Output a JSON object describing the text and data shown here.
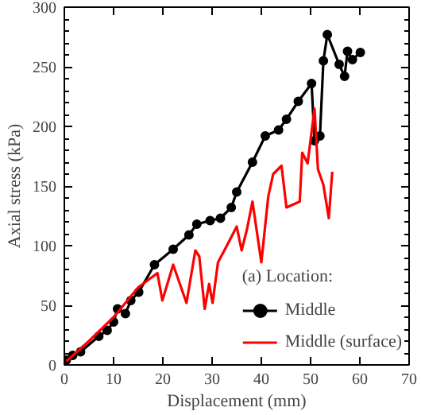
{
  "chart_data": {
    "type": "line",
    "xlabel": "Displacement (mm)",
    "ylabel": "Axial stress (kPa)",
    "legend_title": "(a) Location:",
    "legend": "bottom right",
    "grid": false,
    "xlim": [
      0,
      70
    ],
    "xticks": [
      0,
      10,
      20,
      30,
      40,
      50,
      60,
      70
    ],
    "ylim": [
      0,
      300
    ],
    "yticks": [
      0,
      50,
      100,
      150,
      200,
      250,
      300
    ],
    "series": [
      {
        "name": "Middle",
        "color": "#000000",
        "marker": "circle",
        "x": [
          0.4,
          1.7,
          3.3,
          7,
          8.7,
          10,
          10.8,
          12.4,
          13.5,
          15.1,
          18.3,
          22.1,
          25.3,
          26.9,
          29.6,
          31.7,
          33.9,
          35,
          38.2,
          40.8,
          43.5,
          45.1,
          47.5,
          50.2,
          50.8,
          51.9,
          52.6,
          53.4,
          55.8,
          56.9,
          57.5,
          58.5,
          60.1
        ],
        "values": [
          4,
          8,
          11,
          24,
          29,
          36,
          47,
          43,
          54,
          61,
          84,
          97,
          109,
          118,
          121,
          123,
          132,
          145,
          170,
          192,
          197,
          206,
          221,
          236,
          188,
          192,
          255,
          277,
          252,
          242,
          263,
          256,
          262
        ]
      },
      {
        "name": "Middle (surface)",
        "color": "#ff0000",
        "marker": "none",
        "x": [
          0.4,
          5,
          10,
          15,
          18.9,
          19.9,
          22.1,
          24.8,
          26.6,
          27.4,
          28.5,
          29.4,
          30.1,
          31.2,
          33,
          35,
          36,
          37.1,
          38.2,
          40,
          41.4,
          42.4,
          44.1,
          45.1,
          47.8,
          48.3,
          49.4,
          50.8,
          51.5,
          52.6,
          53.7,
          54.4
        ],
        "values": [
          3,
          20,
          40,
          65,
          77,
          54,
          84,
          52,
          96,
          91,
          47,
          68,
          52,
          86,
          100,
          116,
          96,
          114,
          137,
          86,
          141,
          160,
          167,
          132,
          137,
          178,
          169,
          215,
          164,
          151,
          123,
          162
        ]
      }
    ]
  }
}
